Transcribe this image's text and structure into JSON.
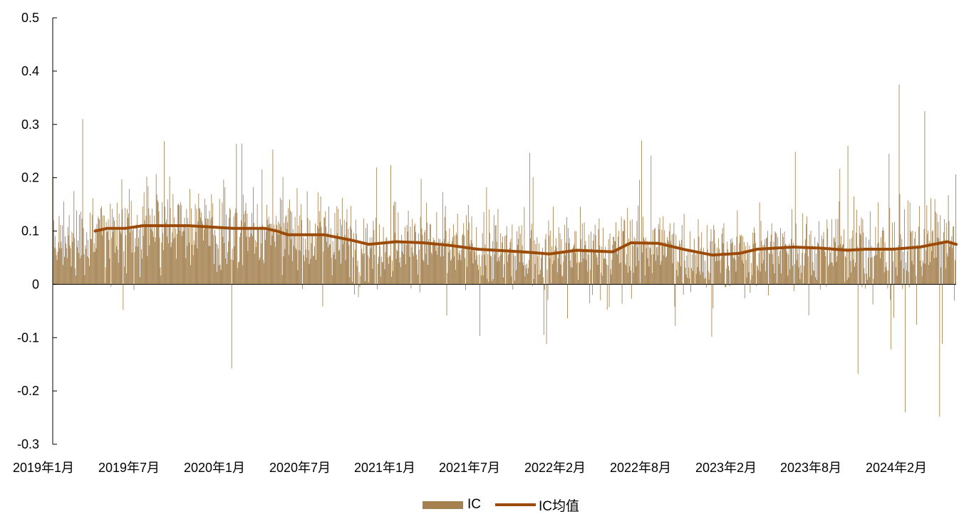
{
  "chart_data": {
    "type": "bar+line",
    "title": "",
    "xlabel": "",
    "ylabel": "",
    "ylim": [
      -0.3,
      0.5
    ],
    "yticks": [
      "0.5",
      "0.4",
      "0.3",
      "0.2",
      "0.1",
      "0",
      "-0.1",
      "-0.2",
      "-0.3"
    ],
    "ytick_values": [
      0.5,
      0.4,
      0.3,
      0.2,
      0.1,
      0,
      -0.1,
      -0.2,
      -0.3
    ],
    "xticks": [
      "2019年1月",
      "2019年7月",
      "2020年1月",
      "2020年7月",
      "2021年1月",
      "2021年7月",
      "2022年2月",
      "2022年8月",
      "2023年2月",
      "2023年8月",
      "2024年2月"
    ],
    "grid": false,
    "legend_placement": "bottom-center",
    "colors": {
      "bar": "#a4814f",
      "line": "#9c4a07"
    },
    "series": [
      {
        "name": "IC",
        "kind": "bar",
        "n_points": 1340,
        "typical_value": 0.07,
        "max_value": 0.375,
        "min_value": -0.248,
        "notable_spikes": [
          {
            "near": "2019年1月-2019年7月",
            "value": 0.31
          },
          {
            "near": "2020年1月-2020年7月",
            "value": -0.158
          },
          {
            "near": "2022年8月",
            "value": 0.27
          },
          {
            "near": "2023年8月",
            "value": -0.168
          },
          {
            "near": "2024年2月",
            "value": 0.375
          },
          {
            "near": "2024年2月",
            "value": -0.24
          },
          {
            "near": "2024年2月",
            "value": 0.325
          },
          {
            "near": "2024年2月",
            "value": -0.248
          }
        ]
      },
      {
        "name": "IC均值",
        "kind": "line",
        "x": [
          0.047,
          0.06,
          0.08,
          0.1,
          0.12,
          0.15,
          0.2,
          0.235,
          0.248,
          0.26,
          0.3,
          0.33,
          0.35,
          0.38,
          0.41,
          0.44,
          0.47,
          0.5,
          0.52,
          0.55,
          0.58,
          0.62,
          0.64,
          0.67,
          0.7,
          0.73,
          0.76,
          0.78,
          0.82,
          0.85,
          0.88,
          0.9,
          0.93,
          0.96,
          0.975,
          0.99,
          1.0
        ],
        "values": [
          0.1,
          0.105,
          0.105,
          0.11,
          0.11,
          0.11,
          0.105,
          0.105,
          0.1,
          0.093,
          0.093,
          0.083,
          0.075,
          0.08,
          0.078,
          0.073,
          0.066,
          0.063,
          0.061,
          0.057,
          0.064,
          0.061,
          0.078,
          0.077,
          0.065,
          0.055,
          0.058,
          0.066,
          0.07,
          0.068,
          0.064,
          0.066,
          0.066,
          0.07,
          0.075,
          0.08,
          0.075
        ]
      }
    ]
  },
  "legend": {
    "bar_label": "IC",
    "line_label": "IC均值"
  }
}
